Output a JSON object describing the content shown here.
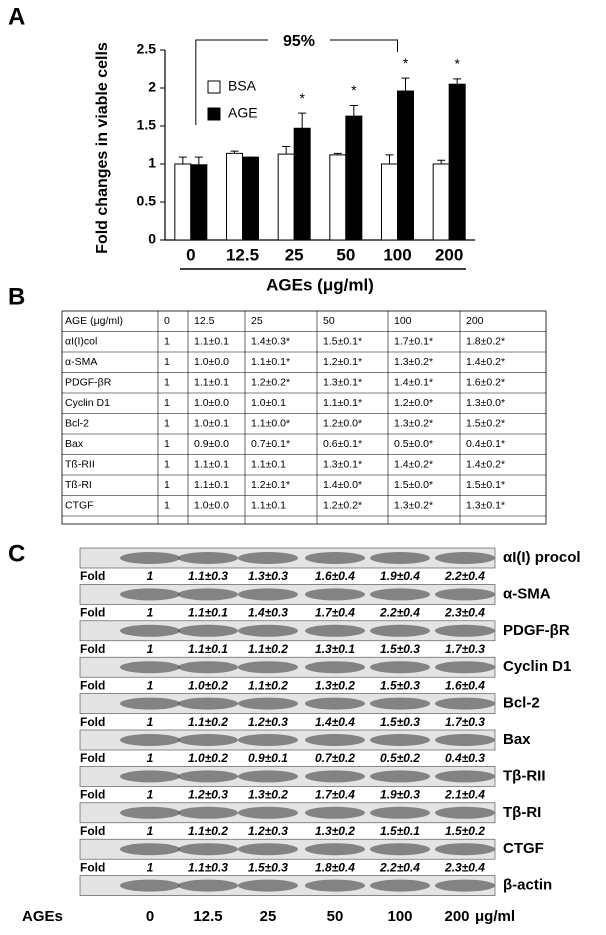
{
  "chart_data": {
    "type": "bar",
    "panel_label": "A",
    "ylabel": "Fold changes in viable cells",
    "xlabel": "AGEs  (μg/ml)",
    "categories": [
      "0",
      "12.5",
      "25",
      "50",
      "100",
      "200"
    ],
    "series": [
      {
        "name": "BSA",
        "color": "#ffffff",
        "values": [
          1.0,
          1.14,
          1.13,
          1.12,
          1.0,
          1.0
        ],
        "errors": [
          0.09,
          0.03,
          0.1,
          0.02,
          0.12,
          0.05
        ]
      },
      {
        "name": "AGE",
        "color": "#000000",
        "values": [
          0.99,
          1.09,
          1.47,
          1.63,
          1.96,
          2.05
        ],
        "errors": [
          0.1,
          0.0,
          0.2,
          0.14,
          0.17,
          0.07
        ]
      }
    ],
    "significance": [
      null,
      null,
      "*",
      "*",
      "*",
      "*"
    ],
    "annotation": "95%",
    "ylim": [
      0,
      2.5
    ],
    "yticks": [
      0,
      0.5,
      1,
      1.5,
      2,
      2.5
    ],
    "grid": false,
    "legend": "upper-left"
  },
  "table": {
    "panel_label": "B",
    "header": [
      "AGE (μg/ml)",
      "0",
      "12.5",
      "25",
      "50",
      "100",
      "200"
    ],
    "rows": [
      [
        "αI(I)col",
        "1",
        "1.1±0.1",
        "1.4±0.3*",
        "1.5±0.1*",
        "1.7±0.1*",
        "1.8±0.2*"
      ],
      [
        "α-SMA",
        "1",
        "1.0±0.0",
        "1.1±0.1*",
        "1.2±0.1*",
        "1.3±0.2*",
        "1.4±0.2*"
      ],
      [
        "PDGF-βR",
        "1",
        "1.1±0.1",
        "1.2±0.2*",
        "1.3±0.1*",
        "1.4±0.1*",
        "1.6±0.2*"
      ],
      [
        "Cyclin D1",
        "1",
        "1.0±0.0",
        "1.0±0.1",
        "1.1±0.1*",
        "1.2±0.0*",
        "1.3±0.0*"
      ],
      [
        "Bcl-2",
        "1",
        "1.0±0.1",
        "1.1±0.0*",
        "1.2±0.0*",
        "1.3±0.2*",
        "1.5±0.2*"
      ],
      [
        "Bax",
        "1",
        "0.9±0.0",
        "0.7±0.1*",
        "0.6±0.1*",
        "0.5±0.0*",
        "0.4±0.1*"
      ],
      [
        "Tß-RII",
        "1",
        "1.1±0.1",
        "1.1±0.1",
        "1.3±0.1*",
        "1.4±0.2*",
        "1.4±0.2*"
      ],
      [
        "Tß-RI",
        "1",
        "1.1±0.1",
        "1.2±0.1*",
        "1.4±0.0*",
        "1.5±0.0*",
        "1.5±0.1*"
      ],
      [
        "CTGF",
        "1",
        "1.0±0.0",
        "1.1±0.1",
        "1.2±0.2*",
        "1.3±0.2*",
        "1.3±0.1*"
      ]
    ]
  },
  "blot": {
    "panel_label": "C",
    "fold_label": "Fold",
    "rows": [
      {
        "protein": "αI(I) procol",
        "folds": [
          "1",
          "1.1±0.3",
          "1.3±0.3",
          "1.6±0.4",
          "1.9±0.4",
          "2.2±0.4"
        ]
      },
      {
        "protein": "α-SMA",
        "folds": [
          "1",
          "1.1±0.1",
          "1.4±0.3",
          "1.7±0.4",
          "2.2±0.4",
          "2.3±0.4"
        ]
      },
      {
        "protein": "PDGF-βR",
        "folds": [
          "1",
          "1.1±0.1",
          "1.1±0.2",
          "1.3±0.1",
          "1.5±0.3",
          "1.7±0.3"
        ]
      },
      {
        "protein": "Cyclin D1",
        "folds": [
          "1",
          "1.0±0.2",
          "1.1±0.2",
          "1.3±0.2",
          "1.5±0.3",
          "1.6±0.4"
        ]
      },
      {
        "protein": "Bcl-2",
        "folds": [
          "1",
          "1.1±0.2",
          "1.2±0.3",
          "1.4±0.4",
          "1.5±0.3",
          "1.7±0.3"
        ]
      },
      {
        "protein": "Bax",
        "folds": [
          "1",
          "1.0±0.2",
          "0.9±0.1",
          "0.7±0.2",
          "0.5±0.2",
          "0.4±0.3"
        ]
      },
      {
        "protein": "Tβ-RII",
        "folds": [
          "1",
          "1.2±0.3",
          "1.3±0.2",
          "1.7±0.4",
          "1.9±0.3",
          "2.1±0.4"
        ]
      },
      {
        "protein": "Tβ-RI",
        "folds": [
          "1",
          "1.1±0.2",
          "1.2±0.3",
          "1.3±0.2",
          "1.5±0.1",
          "1.5±0.2"
        ]
      },
      {
        "protein": "CTGF",
        "folds": [
          "1",
          "1.1±0.3",
          "1.5±0.3",
          "1.8±0.4",
          "2.2±0.4",
          "2.3±0.4"
        ]
      },
      {
        "protein": "β-actin"
      }
    ],
    "lane_title": "AGEs",
    "lanes": [
      "0",
      "12.5",
      "25",
      "50",
      "100",
      "200"
    ],
    "unit": "μg/ml"
  }
}
